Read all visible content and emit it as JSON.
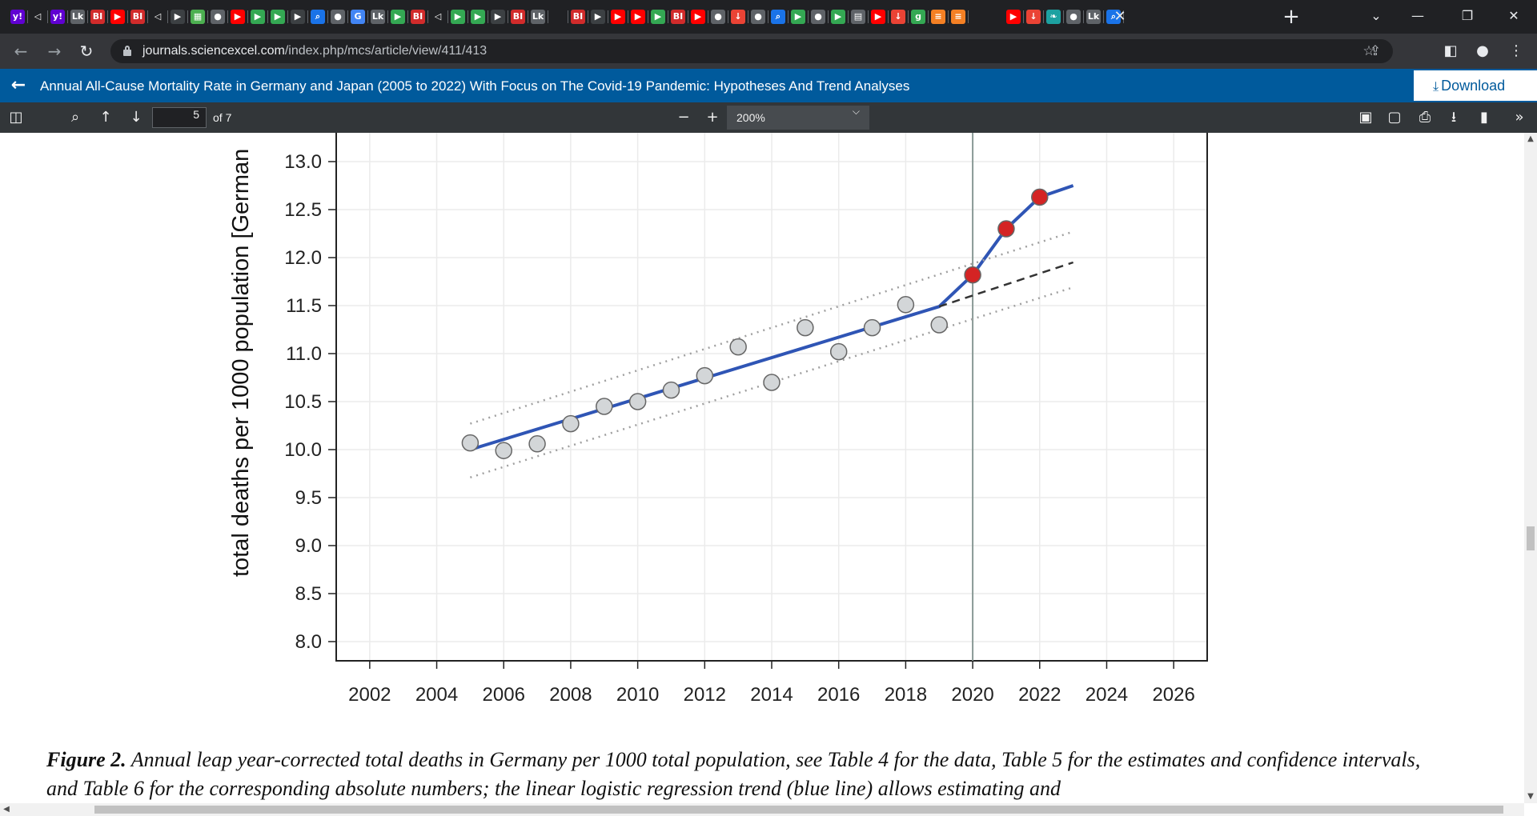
{
  "browser": {
    "tab_favicons": [
      {
        "icon": "yahoo-icon",
        "glyph": "y!",
        "color": "#6001d2"
      },
      {
        "icon": "shield-icon",
        "glyph": "◁",
        "color": "#202124"
      },
      {
        "icon": "yahoo-icon",
        "glyph": "y!",
        "color": "#6001d2"
      },
      {
        "icon": "paper-icon",
        "glyph": "Lk",
        "color": "#5f6368"
      },
      {
        "icon": "bi-icon",
        "glyph": "BI",
        "color": "#d12b2b"
      },
      {
        "icon": "youtube-icon",
        "glyph": "▶",
        "color": "#ff0000"
      },
      {
        "icon": "bi-icon",
        "glyph": "BI",
        "color": "#d12b2b"
      },
      {
        "icon": "shield-icon",
        "glyph": "◁",
        "color": "#202124"
      },
      {
        "icon": "play-icon",
        "glyph": "▶",
        "color": "#3c4043"
      },
      {
        "icon": "grid-icon",
        "glyph": "▦",
        "color": "#4caf50"
      },
      {
        "icon": "globe-icon",
        "glyph": "●",
        "color": "#5f6368"
      },
      {
        "icon": "youtube-icon",
        "glyph": "▶",
        "color": "#ff0000"
      },
      {
        "icon": "play-icon",
        "glyph": "▶",
        "color": "#34a853"
      },
      {
        "icon": "play-icon",
        "glyph": "▶",
        "color": "#34a853"
      },
      {
        "icon": "play-icon",
        "glyph": "▶",
        "color": "#3c4043"
      },
      {
        "icon": "search-icon",
        "glyph": "⌕",
        "color": "#1a73e8"
      },
      {
        "icon": "globe-icon",
        "glyph": "●",
        "color": "#5f6368"
      },
      {
        "icon": "google-icon",
        "glyph": "G",
        "color": "#4285f4"
      },
      {
        "icon": "paper-icon",
        "glyph": "Lk",
        "color": "#5f6368"
      },
      {
        "icon": "play-icon",
        "glyph": "▶",
        "color": "#34a853"
      },
      {
        "icon": "bi-icon",
        "glyph": "BI",
        "color": "#d12b2b"
      },
      {
        "icon": "shield-icon",
        "glyph": "◁",
        "color": "#202124"
      },
      {
        "icon": "play-icon",
        "glyph": "▶",
        "color": "#34a853"
      },
      {
        "icon": "play-icon",
        "glyph": "▶",
        "color": "#34a853"
      },
      {
        "icon": "play-icon",
        "glyph": "▶",
        "color": "#3c4043"
      },
      {
        "icon": "bi-icon",
        "glyph": "BI",
        "color": "#d12b2b"
      },
      {
        "icon": "paper-icon",
        "glyph": "Lk",
        "color": "#5f6368"
      },
      {
        "icon": "blank-icon",
        "glyph": "",
        "color": "#202124"
      },
      {
        "icon": "bi-icon",
        "glyph": "BI",
        "color": "#d12b2b"
      },
      {
        "icon": "play-icon",
        "glyph": "▶",
        "color": "#3c4043"
      },
      {
        "icon": "youtube-icon",
        "glyph": "▶",
        "color": "#ff0000"
      },
      {
        "icon": "youtube-icon",
        "glyph": "▶",
        "color": "#ff0000"
      },
      {
        "icon": "play-icon",
        "glyph": "▶",
        "color": "#34a853"
      },
      {
        "icon": "bi-icon",
        "glyph": "BI",
        "color": "#d12b2b"
      },
      {
        "icon": "youtube-icon",
        "glyph": "▶",
        "color": "#ff0000"
      },
      {
        "icon": "globe-icon",
        "glyph": "●",
        "color": "#5f6368"
      },
      {
        "icon": "pin-icon",
        "glyph": "↓",
        "color": "#ea4335"
      },
      {
        "icon": "globe-icon",
        "glyph": "●",
        "color": "#5f6368"
      },
      {
        "icon": "search-icon",
        "glyph": "⌕",
        "color": "#1a73e8"
      },
      {
        "icon": "play-icon",
        "glyph": "▶",
        "color": "#34a853"
      },
      {
        "icon": "globe-icon",
        "glyph": "●",
        "color": "#5f6368"
      },
      {
        "icon": "play-icon",
        "glyph": "▶",
        "color": "#34a853"
      },
      {
        "icon": "news-icon",
        "glyph": "▤",
        "color": "#5f6368"
      },
      {
        "icon": "youtube-icon",
        "glyph": "▶",
        "color": "#ff0000"
      },
      {
        "icon": "pin-icon",
        "glyph": "↓",
        "color": "#ea4335"
      },
      {
        "icon": "g-icon",
        "glyph": "g",
        "color": "#34a853"
      },
      {
        "icon": "stack-icon",
        "glyph": "≡",
        "color": "#f48024"
      },
      {
        "icon": "stack-icon",
        "glyph": "≡",
        "color": "#f48024"
      }
    ],
    "tab_favicons_after_active": [
      {
        "icon": "youtube-icon",
        "glyph": "▶",
        "color": "#ff0000"
      },
      {
        "icon": "pin-icon",
        "glyph": "↓",
        "color": "#ea4335"
      },
      {
        "icon": "bird-icon",
        "glyph": "❧",
        "color": "#1da1a1"
      },
      {
        "icon": "globe-icon",
        "glyph": "●",
        "color": "#5f6368"
      },
      {
        "icon": "paper-icon",
        "glyph": "Lk",
        "color": "#5f6368"
      },
      {
        "icon": "search-icon",
        "glyph": "⌕",
        "color": "#1a73e8"
      }
    ],
    "active_tab_close": "✕",
    "new_tab": "+",
    "window_controls": {
      "dropdown": "⌄",
      "minimize": "—",
      "restore": "❐",
      "close": "✕"
    },
    "url_host": "journals.sciencexcel.com",
    "url_path": "/index.php/mcs/article/view/411/413"
  },
  "article": {
    "title": "Annual All-Cause Mortality Rate in Germany and Japan (2005 to 2022) With Focus on The Covid-19 Pandemic: Hypotheses And Trend Analyses",
    "download_label": "Download"
  },
  "pdf_toolbar": {
    "page_number": "5",
    "page_count": "of 7",
    "zoom": "200%"
  },
  "chart_data": {
    "type": "scatter",
    "ylabel": "total deaths per 1000 population [German",
    "xlim": [
      2001,
      2027
    ],
    "ylim": [
      7.8,
      13.3
    ],
    "x_ticks": [
      2002,
      2004,
      2006,
      2008,
      2010,
      2012,
      2014,
      2016,
      2018,
      2020,
      2022,
      2024,
      2026
    ],
    "y_ticks": [
      "8.0",
      "8.5",
      "9.0",
      "9.5",
      "10.0",
      "10.5",
      "11.0",
      "11.5",
      "12.0",
      "12.5",
      "13.0"
    ],
    "grid": true,
    "covid_start_line": 2020,
    "series": [
      {
        "kind": "points",
        "style": "observed-pre-pandemic",
        "color": "#d3d6d8",
        "x": [
          2005,
          2006,
          2007,
          2008,
          2009,
          2010,
          2011,
          2012,
          2013,
          2014,
          2015,
          2016,
          2017,
          2018,
          2019
        ],
        "y": [
          10.07,
          9.99,
          10.06,
          10.27,
          10.45,
          10.5,
          10.62,
          10.77,
          11.07,
          10.7,
          11.27,
          11.02,
          11.27,
          11.51,
          11.3
        ]
      },
      {
        "kind": "points",
        "style": "observed-pandemic",
        "color": "#d42424",
        "x": [
          2020,
          2021,
          2022
        ],
        "y": [
          11.82,
          12.3,
          12.63
        ]
      },
      {
        "kind": "line",
        "style": "trend",
        "color": "#2f55b5",
        "x": [
          2005,
          2019,
          2020,
          2021,
          2022,
          2023
        ],
        "y": [
          10.0,
          11.49,
          11.82,
          12.3,
          12.63,
          12.75
        ]
      },
      {
        "kind": "line",
        "style": "extrapolated-trend",
        "color": "#333333",
        "x": [
          2019,
          2023
        ],
        "y": [
          11.49,
          11.95
        ]
      },
      {
        "kind": "line",
        "style": "upper-interval",
        "color": "#a0a0a0",
        "x": [
          2005,
          2023
        ],
        "y": [
          10.27,
          12.27
        ]
      },
      {
        "kind": "line",
        "style": "lower-interval",
        "color": "#a0a0a0",
        "x": [
          2005,
          2023
        ],
        "y": [
          9.71,
          11.69
        ]
      }
    ]
  },
  "caption": {
    "label": "Figure 2.",
    "text": "Annual leap year-corrected total deaths in Germany per 1000 total population, see Table 4 for the data, Table 5 for the estimates and confidence intervals, and Table 6 for the corresponding absolute numbers; the linear logistic regression trend (blue line) allows estimating and"
  }
}
